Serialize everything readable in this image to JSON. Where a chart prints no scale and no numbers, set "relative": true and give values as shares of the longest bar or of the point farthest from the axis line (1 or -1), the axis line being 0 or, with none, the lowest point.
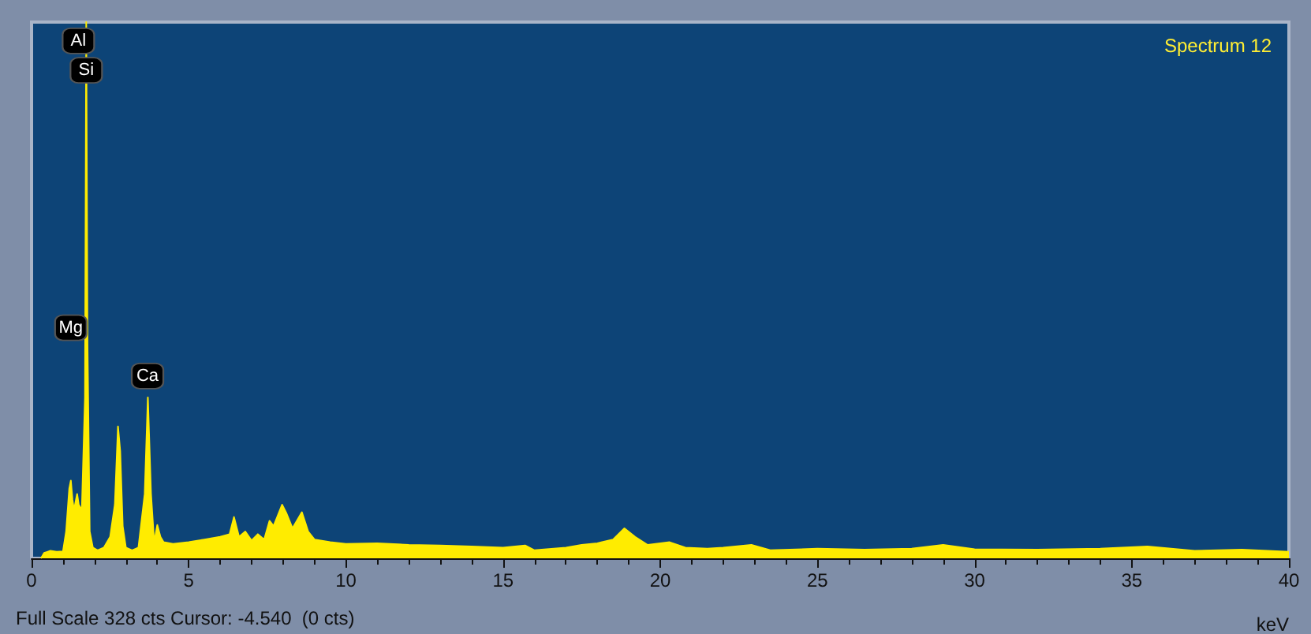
{
  "chart_data": {
    "type": "area",
    "relative": true,
    "title": "Spectrum 12",
    "xlabel": "keV",
    "annotations": [
      {
        "text": "Al",
        "x": 1.49,
        "y": 0.965
      },
      {
        "text": "Si",
        "x": 1.74,
        "y": 0.91
      },
      {
        "text": "Mg",
        "x": 1.25,
        "y": 0.43
      },
      {
        "text": "Ca",
        "x": 3.69,
        "y": 0.34
      },
      "Full Scale 328 cts Cursor: -4.540  (0 cts)"
    ],
    "x": [
      0.3,
      0.4,
      0.5,
      0.6,
      0.8,
      1.0,
      1.1,
      1.2,
      1.25,
      1.3,
      1.35,
      1.45,
      1.5,
      1.6,
      1.7,
      1.74,
      1.78,
      1.85,
      1.95,
      2.1,
      2.3,
      2.5,
      2.65,
      2.75,
      2.82,
      2.9,
      3.0,
      3.2,
      3.4,
      3.6,
      3.7,
      3.8,
      3.9,
      4.0,
      4.1,
      4.2,
      4.5,
      5.0,
      5.5,
      6.0,
      6.3,
      6.44,
      6.6,
      6.8,
      7.0,
      7.2,
      7.4,
      7.57,
      7.7,
      7.97,
      8.1,
      8.3,
      8.6,
      8.8,
      9.0,
      9.5,
      10.0,
      11.0,
      12.0,
      13.0,
      14.0,
      15.0,
      15.7,
      16.0,
      17.0,
      17.5,
      18.0,
      18.5,
      18.86,
      19.2,
      19.6,
      20.0,
      20.3,
      20.8,
      21.5,
      22.0,
      22.9,
      23.5,
      25.0,
      26.5,
      28.0,
      29.0,
      30.0,
      32.0,
      34.0,
      35.5,
      37.0,
      38.5,
      40.0
    ],
    "series": [
      {
        "color": "#ffec00",
        "values": [
          0.0,
          0.01,
          0.012,
          0.014,
          0.012,
          0.013,
          0.05,
          0.13,
          0.145,
          0.11,
          0.09,
          0.12,
          0.1,
          0.09,
          0.3,
          1.0,
          0.4,
          0.05,
          0.02,
          0.015,
          0.02,
          0.04,
          0.1,
          0.246,
          0.2,
          0.06,
          0.02,
          0.015,
          0.02,
          0.12,
          0.3,
          0.12,
          0.03,
          0.062,
          0.04,
          0.03,
          0.027,
          0.03,
          0.035,
          0.04,
          0.045,
          0.077,
          0.04,
          0.05,
          0.033,
          0.045,
          0.035,
          0.07,
          0.06,
          0.1,
          0.085,
          0.056,
          0.086,
          0.05,
          0.035,
          0.03,
          0.027,
          0.028,
          0.025,
          0.024,
          0.022,
          0.02,
          0.024,
          0.015,
          0.02,
          0.025,
          0.028,
          0.035,
          0.056,
          0.04,
          0.025,
          0.028,
          0.03,
          0.02,
          0.018,
          0.02,
          0.025,
          0.015,
          0.018,
          0.016,
          0.018,
          0.025,
          0.017,
          0.016,
          0.018,
          0.022,
          0.014,
          0.016,
          0.012
        ]
      }
    ],
    "xlim": [
      0,
      40
    ],
    "xticks": [
      0,
      5,
      10,
      15,
      20,
      25,
      30,
      35,
      40
    ]
  }
}
